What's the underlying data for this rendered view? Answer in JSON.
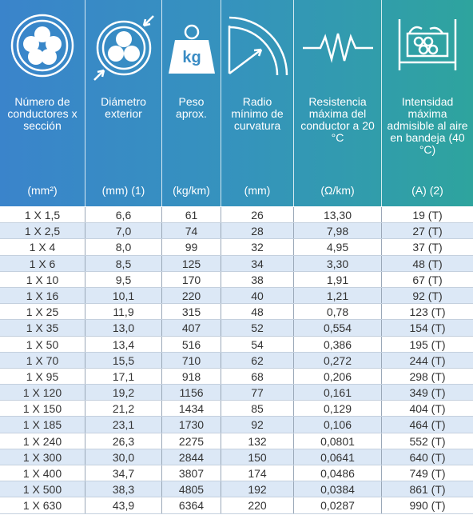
{
  "table": {
    "columns": [
      {
        "title": "Número de conductores x sección",
        "unit": "(mm²)"
      },
      {
        "title": "Diámetro exterior",
        "unit": "(mm) (1)"
      },
      {
        "title": "Peso aprox.",
        "unit": "(kg/km)",
        "icon_label": "kg"
      },
      {
        "title": "Radio mínimo de curvatura",
        "unit": "(mm)"
      },
      {
        "title": "Resistencia máxima del conductor a 20 °C",
        "unit": "(Ω/km)"
      },
      {
        "title": "Intensidad máxima admisible al aire en bandeja (40 °C)",
        "unit": "(A) (2)"
      }
    ],
    "rows": [
      [
        "1 X 1,5",
        "6,6",
        "61",
        "26",
        "13,30",
        "19 (T)"
      ],
      [
        "1 X 2,5",
        "7,0",
        "74",
        "28",
        "7,98",
        "27 (T)"
      ],
      [
        "1 X 4",
        "8,0",
        "99",
        "32",
        "4,95",
        "37 (T)"
      ],
      [
        "1 X 6",
        "8,5",
        "125",
        "34",
        "3,30",
        "48 (T)"
      ],
      [
        "1 X 10",
        "9,5",
        "170",
        "38",
        "1,91",
        "67 (T)"
      ],
      [
        "1 X 16",
        "10,1",
        "220",
        "40",
        "1,21",
        "92 (T)"
      ],
      [
        "1 X 25",
        "11,9",
        "315",
        "48",
        "0,78",
        "123 (T)"
      ],
      [
        "1 X 35",
        "13,0",
        "407",
        "52",
        "0,554",
        "154 (T)"
      ],
      [
        "1 X 50",
        "13,4",
        "516",
        "54",
        "0,386",
        "195 (T)"
      ],
      [
        "1 X 70",
        "15,5",
        "710",
        "62",
        "0,272",
        "244 (T)"
      ],
      [
        "1 X 95",
        "17,1",
        "918",
        "68",
        "0,206",
        "298 (T)"
      ],
      [
        "1 X 120",
        "19,2",
        "1156",
        "77",
        "0,161",
        "349 (T)"
      ],
      [
        "1 X 150",
        "21,2",
        "1434",
        "85",
        "0,129",
        "404 (T)"
      ],
      [
        "1 X 185",
        "23,1",
        "1730",
        "92",
        "0,106",
        "464 (T)"
      ],
      [
        "1 X 240",
        "26,3",
        "2275",
        "132",
        "0,0801",
        "552 (T)"
      ],
      [
        "1 X 300",
        "30,0",
        "2844",
        "150",
        "0,0641",
        "640 (T)"
      ],
      [
        "1 X 400",
        "34,7",
        "3807",
        "174",
        "0,0486",
        "749 (T)"
      ],
      [
        "1 X 500",
        "38,3",
        "4805",
        "192",
        "0,0384",
        "861 (T)"
      ],
      [
        "1 X 630",
        "43,9",
        "6364",
        "220",
        "0,0287",
        "990 (T)"
      ]
    ]
  }
}
